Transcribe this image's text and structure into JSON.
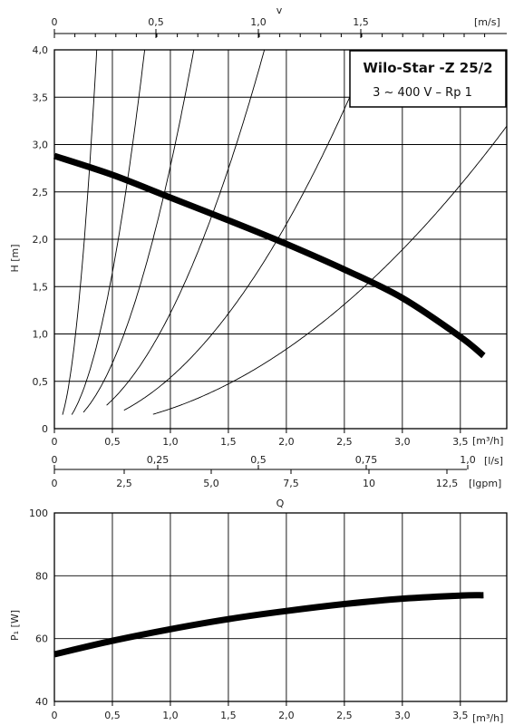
{
  "chart_data": [
    {
      "type": "line",
      "title": "Wilo-Star -Z 25/2",
      "subtitle": "3 ~ 400 V – Rp 1",
      "ylabel": "H [m]",
      "xlabel": "[m³/h]",
      "ylim": [
        0,
        4.0
      ],
      "xlim": [
        0,
        3.9
      ],
      "yticks": [
        "0",
        "0,5",
        "1,0",
        "1,5",
        "2,0",
        "2,5",
        "3,0",
        "3,5",
        "4,0"
      ],
      "xticks": [
        "0",
        "0,5",
        "1,0",
        "1,5",
        "2,0",
        "2,5",
        "3,0",
        "3,5"
      ],
      "x_secondary": [
        {
          "label": "v",
          "unit": "[m/s]",
          "ticks": [
            "0",
            "0,5",
            "1,0",
            "1,5"
          ],
          "position": "top"
        },
        {
          "label": "",
          "unit": "[l/s]",
          "ticks": [
            "0",
            "0,25",
            "0,5",
            "0,75",
            "1,0"
          ],
          "position": "bottom"
        },
        {
          "label": "",
          "unit": "[lgpm]",
          "ticks": [
            "0",
            "2,5",
            "5,0",
            "7,5",
            "10",
            "12,5"
          ],
          "position": "bottom"
        }
      ],
      "grid": true,
      "series": [
        {
          "name": "",
          "kind": "pump-curve",
          "x": [
            0,
            0.5,
            1.0,
            1.5,
            2.0,
            2.5,
            3.0,
            3.5,
            3.7
          ],
          "y": [
            2.88,
            2.68,
            2.44,
            2.2,
            1.95,
            1.68,
            1.38,
            0.97,
            0.77
          ]
        },
        {
          "name": "",
          "kind": "system-curve",
          "k": 30.0,
          "x_start": 0.07
        },
        {
          "name": "",
          "kind": "system-curve",
          "k": 6.6,
          "x_start": 0.15
        },
        {
          "name": "",
          "kind": "system-curve",
          "k": 2.77,
          "x_start": 0.25
        },
        {
          "name": "",
          "kind": "system-curve",
          "k": 1.22,
          "x_start": 0.45
        },
        {
          "name": "",
          "kind": "system-curve",
          "k": 0.54,
          "x_start": 0.6
        },
        {
          "name": "",
          "kind": "system-curve",
          "k": 0.21,
          "x_start": 0.85
        }
      ]
    },
    {
      "type": "line",
      "xlabel": "Q",
      "ylabel": "P₁ [W]",
      "xunit": "[m³/h]",
      "ylim": [
        40,
        100
      ],
      "xlim": [
        0,
        3.9
      ],
      "yticks": [
        "40",
        "60",
        "80",
        "100"
      ],
      "xticks": [
        "0",
        "0,5",
        "1,0",
        "1,5",
        "2,0",
        "2,5",
        "3,0",
        "3,5"
      ],
      "grid": true,
      "series": [
        {
          "name": "",
          "kind": "power-curve",
          "x": [
            0,
            0.5,
            1.0,
            1.5,
            2.0,
            2.5,
            3.0,
            3.5,
            3.7
          ],
          "y": [
            55.0,
            59.3,
            63.0,
            66.2,
            68.8,
            71.0,
            72.7,
            73.7,
            73.8
          ]
        }
      ]
    }
  ]
}
